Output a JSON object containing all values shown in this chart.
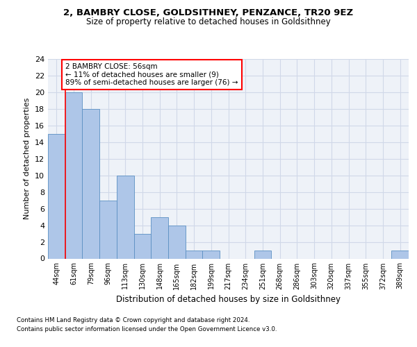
{
  "title": "2, BAMBRY CLOSE, GOLDSITHNEY, PENZANCE, TR20 9EZ",
  "subtitle": "Size of property relative to detached houses in Goldsithney",
  "xlabel": "Distribution of detached houses by size in Goldsithney",
  "ylabel": "Number of detached properties",
  "categories": [
    "44sqm",
    "61sqm",
    "79sqm",
    "96sqm",
    "113sqm",
    "130sqm",
    "148sqm",
    "165sqm",
    "182sqm",
    "199sqm",
    "217sqm",
    "234sqm",
    "251sqm",
    "268sqm",
    "286sqm",
    "303sqm",
    "320sqm",
    "337sqm",
    "355sqm",
    "372sqm",
    "389sqm"
  ],
  "values": [
    15,
    20,
    18,
    7,
    10,
    3,
    5,
    4,
    1,
    1,
    0,
    0,
    1,
    0,
    0,
    0,
    0,
    0,
    0,
    0,
    1
  ],
  "bar_color": "#aec6e8",
  "bar_edge_color": "#5a8fc2",
  "grid_color": "#d0d8e8",
  "bg_color": "#eef2f8",
  "annotation_box_text": "2 BAMBRY CLOSE: 56sqm\n← 11% of detached houses are smaller (9)\n89% of semi-detached houses are larger (76) →",
  "annotation_box_color": "white",
  "annotation_box_edge_color": "red",
  "footer_line1": "Contains HM Land Registry data © Crown copyright and database right 2024.",
  "footer_line2": "Contains public sector information licensed under the Open Government Licence v3.0.",
  "ylim": [
    0,
    24
  ],
  "yticks": [
    0,
    2,
    4,
    6,
    8,
    10,
    12,
    14,
    16,
    18,
    20,
    22,
    24
  ]
}
